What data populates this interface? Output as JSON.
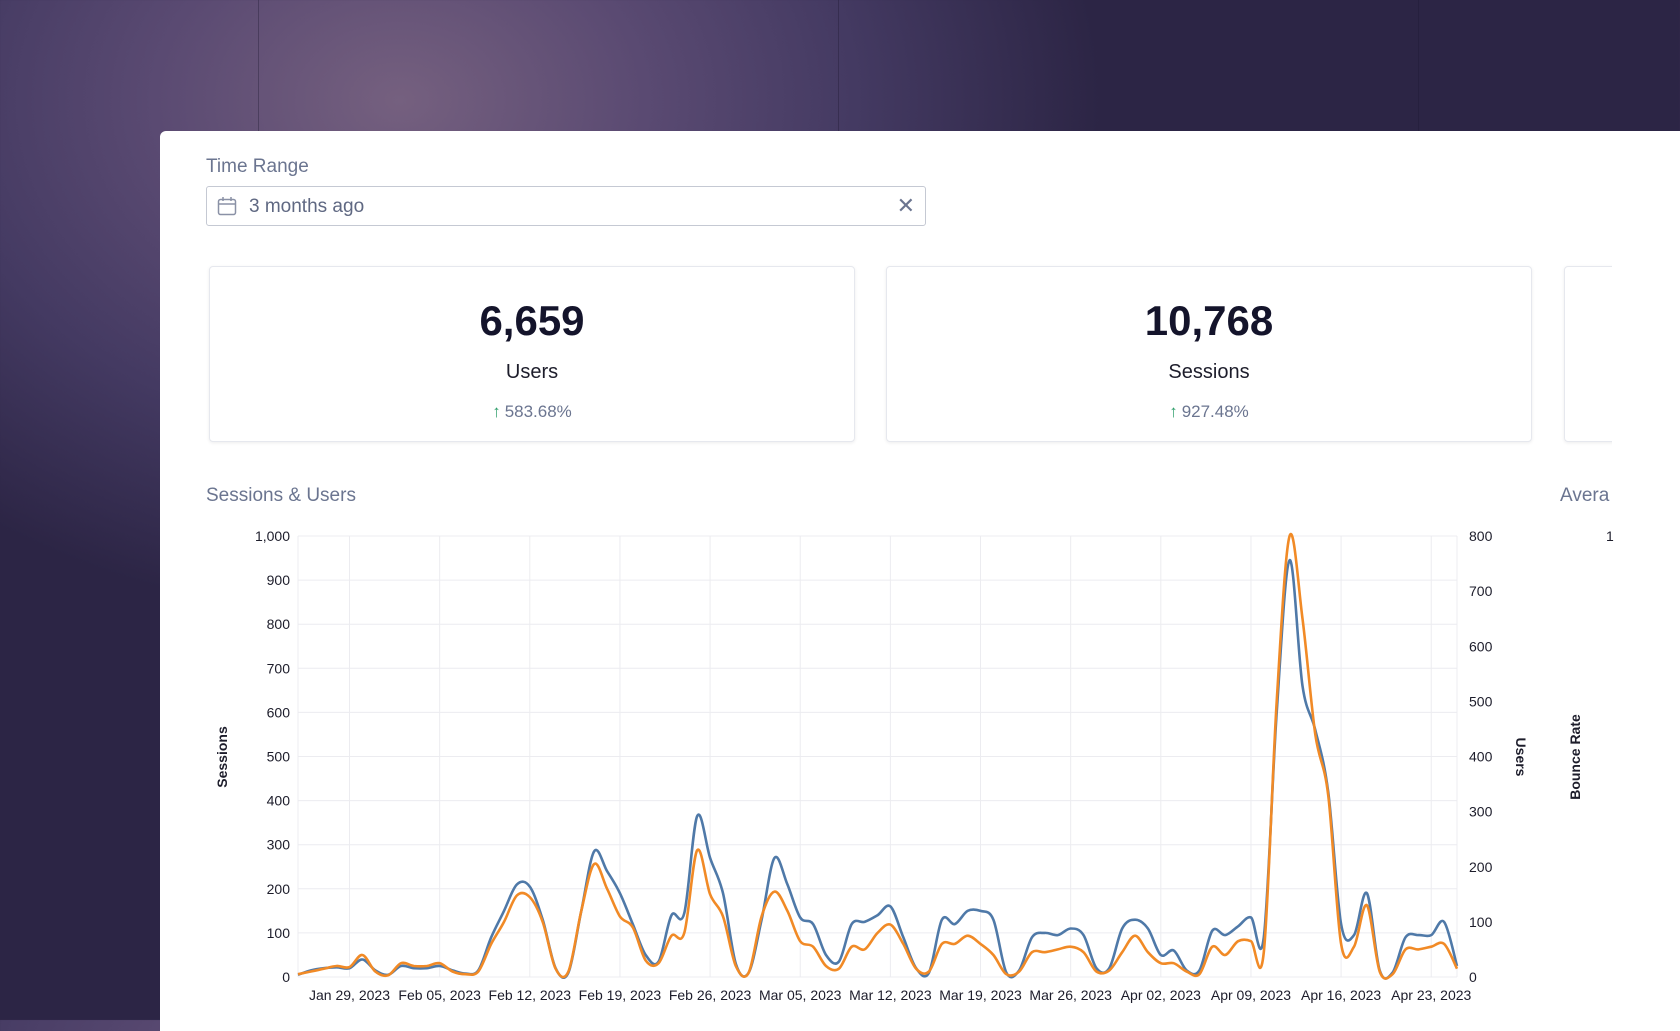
{
  "time_range": {
    "label": "Time Range",
    "value": "3 months ago",
    "clear_icon": "close-icon",
    "calendar_icon": "calendar-icon"
  },
  "stats": [
    {
      "value": "6,659",
      "label": "Users",
      "change": "583.68%",
      "direction": "up"
    },
    {
      "value": "10,768",
      "label": "Sessions",
      "change": "927.48%",
      "direction": "up"
    }
  ],
  "chart_titles": {
    "sessions_users": "Sessions & Users",
    "average": "Avera"
  },
  "colors": {
    "sessions": "#4f79a8",
    "users": "#f18a26",
    "up_arrow": "#2e9e6a"
  },
  "chart_data": {
    "type": "line",
    "title": "Sessions & Users",
    "ylabel": "Sessions",
    "y2label": "Users",
    "y3label": "Bounce Rate",
    "ylim": [
      0,
      1000
    ],
    "y2lim": [
      0,
      800
    ],
    "yticks": [
      "0",
      "100",
      "200",
      "300",
      "400",
      "500",
      "600",
      "700",
      "800",
      "900",
      "1,000"
    ],
    "y2ticks": [
      "0",
      "100",
      "200",
      "300",
      "400",
      "500",
      "600",
      "700",
      "800"
    ],
    "y3tick_partial": "1",
    "xtick_labels": [
      "Jan 29, 2023",
      "Feb 05, 2023",
      "Feb 12, 2023",
      "Feb 19, 2023",
      "Feb 26, 2023",
      "Mar 05, 2023",
      "Mar 12, 2023",
      "Mar 19, 2023",
      "Mar 26, 2023",
      "Apr 02, 2023",
      "Apr 09, 2023",
      "Apr 16, 2023",
      "Apr 23, 2023"
    ],
    "x_start": "2023-01-25",
    "x_end": "2023-04-25",
    "grid": true,
    "series": [
      {
        "name": "Sessions",
        "axis": "left",
        "values": [
          5,
          15,
          20,
          22,
          20,
          40,
          15,
          5,
          25,
          20,
          20,
          25,
          15,
          8,
          15,
          90,
          150,
          210,
          205,
          130,
          20,
          10,
          150,
          285,
          240,
          190,
          120,
          50,
          35,
          140,
          145,
          365,
          270,
          190,
          30,
          10,
          130,
          270,
          210,
          135,
          120,
          50,
          35,
          120,
          125,
          140,
          160,
          90,
          20,
          10,
          130,
          120,
          150,
          150,
          130,
          10,
          15,
          90,
          100,
          95,
          110,
          95,
          20,
          20,
          110,
          130,
          110,
          50,
          60,
          15,
          15,
          105,
          95,
          115,
          135,
          90,
          600,
          945,
          660,
          560,
          420,
          120,
          95,
          190,
          15,
          10,
          90,
          95,
          95,
          125,
          25
        ]
      },
      {
        "name": "Users",
        "axis": "right",
        "values": [
          5,
          10,
          15,
          20,
          18,
          40,
          10,
          3,
          25,
          20,
          20,
          25,
          10,
          5,
          10,
          60,
          100,
          148,
          145,
          100,
          15,
          10,
          120,
          205,
          160,
          110,
          90,
          30,
          25,
          75,
          80,
          230,
          150,
          110,
          20,
          8,
          110,
          155,
          120,
          65,
          55,
          20,
          15,
          55,
          50,
          80,
          95,
          60,
          15,
          10,
          60,
          60,
          75,
          60,
          40,
          5,
          10,
          45,
          45,
          50,
          55,
          45,
          10,
          12,
          45,
          75,
          45,
          25,
          25,
          10,
          5,
          55,
          40,
          65,
          65,
          45,
          500,
          800,
          650,
          440,
          330,
          60,
          55,
          130,
          10,
          5,
          50,
          50,
          55,
          60,
          15
        ]
      }
    ]
  }
}
